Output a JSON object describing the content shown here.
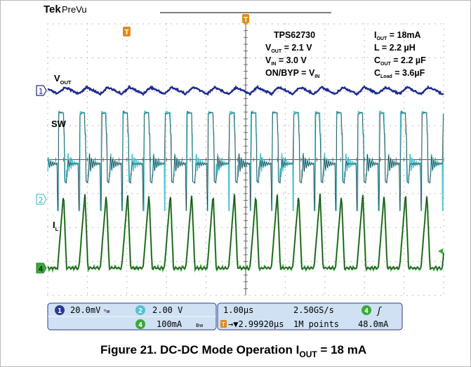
{
  "scope": {
    "brand": "Tek",
    "mode": "PreVu"
  },
  "annotations": {
    "device": "TPS62730",
    "vout": {
      "main": "V",
      "sub": "OUT",
      "value": " = 2.1 V"
    },
    "vin": {
      "main": "V",
      "sub": "IN",
      "value": " = 3.0 V"
    },
    "mode_line": {
      "main": "ON/BYP = V",
      "sub": "IN"
    },
    "iout": {
      "main": "I",
      "sub": "OUT",
      "value": " = 18mA"
    },
    "inductor": {
      "text": "L = 2.2 µH"
    },
    "cout": {
      "main": "C",
      "sub": "OUT",
      "value": " = 2.2 µF"
    },
    "cload": {
      "main": "C",
      "sub": "Load",
      "value": " = 3.6µF"
    }
  },
  "signal_labels": {
    "vout": {
      "main": "V",
      "sub": "OUT"
    },
    "sw": {
      "main": "SW"
    },
    "il": {
      "main": "I",
      "sub": "L"
    }
  },
  "markers": {
    "ch1": "1",
    "ch2": "2",
    "ch4": "4",
    "trigger": "T"
  },
  "status": {
    "ch1_scale": "20.0mV",
    "ch1_bw": "ᴮw",
    "ch2_num": "2",
    "ch2_scale": "2.00 V",
    "ch4_num": "4",
    "ch4_scale": "100mA",
    "ch4_bw": "Bw",
    "timebase": "1.00µs",
    "sample_rate": "2.50GS/s",
    "trig_source": "4",
    "trig_slope": "ʃ",
    "trig_delay": "→▼2.99920µs",
    "record_length": "1M points",
    "trig_level": "48.0mA"
  },
  "caption": {
    "prefix": "Figure 21. DC-DC Mode Operation I",
    "sub": "OUT",
    "suffix": " = 18 mA"
  },
  "colors": {
    "vout": "#1e2a8c",
    "sw": "#4fc4d2",
    "il": "#3aa83a",
    "grid": "#7a7a7a",
    "status_bg": "#cfe1f3",
    "trigger": "#e08a1c"
  },
  "chart_data": {
    "type": "line",
    "title": "Figure 21. DC-DC Mode Operation IOUT = 18 mA",
    "xlabel": "",
    "ylabel": "",
    "time_per_div_us": 1.0,
    "x_divisions": 10,
    "sw_period_us": 0.54,
    "series": [
      {
        "name": "VOUT",
        "channel": 1,
        "volts_per_div": 0.02,
        "coupling": "AC",
        "approx_dc_level_v": 2.1,
        "ripple_mvpp": 8
      },
      {
        "name": "SW",
        "channel": 2,
        "volts_per_div": 2.0,
        "high_v": 3.0,
        "low_v": -1.0,
        "ringing": true
      },
      {
        "name": "IL",
        "channel": 4,
        "amps_per_div": 0.1,
        "peak_a": 0.22,
        "valley_a": 0.0,
        "trigger_level_a": 0.048
      }
    ]
  }
}
